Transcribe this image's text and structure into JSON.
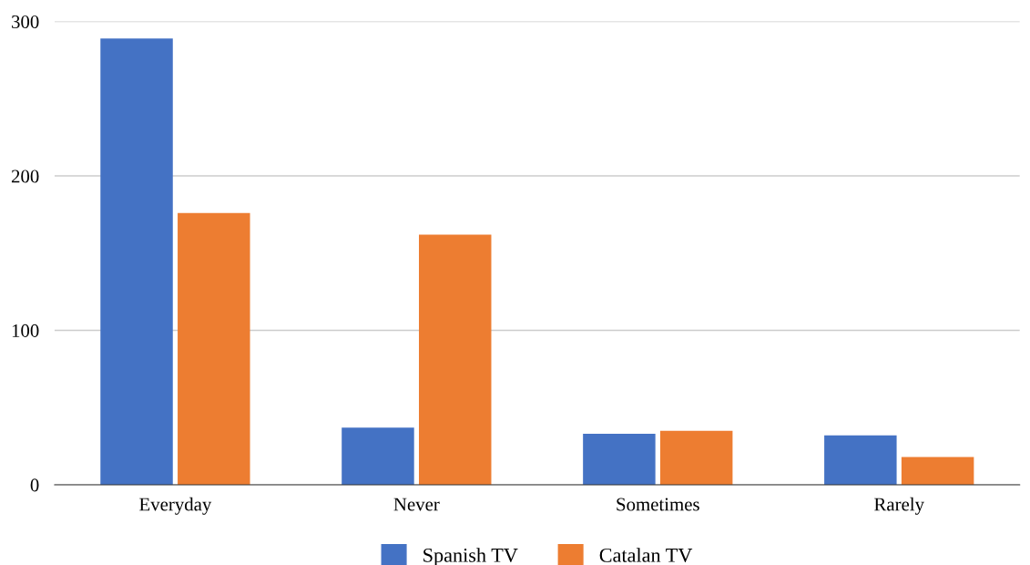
{
  "chart_data": {
    "type": "bar",
    "categories": [
      "Everyday",
      "Never",
      "Sometimes",
      "Rarely"
    ],
    "series": [
      {
        "name": "Spanish TV",
        "color": "#4472c4",
        "values": [
          289,
          37,
          33,
          32
        ]
      },
      {
        "name": "Catalan TV",
        "color": "#ed7d31",
        "values": [
          176,
          162,
          35,
          18
        ]
      }
    ],
    "ylim": [
      0,
      300
    ],
    "yticks": [
      0,
      100,
      200,
      300
    ],
    "grid": "y",
    "legend": "bottom"
  }
}
